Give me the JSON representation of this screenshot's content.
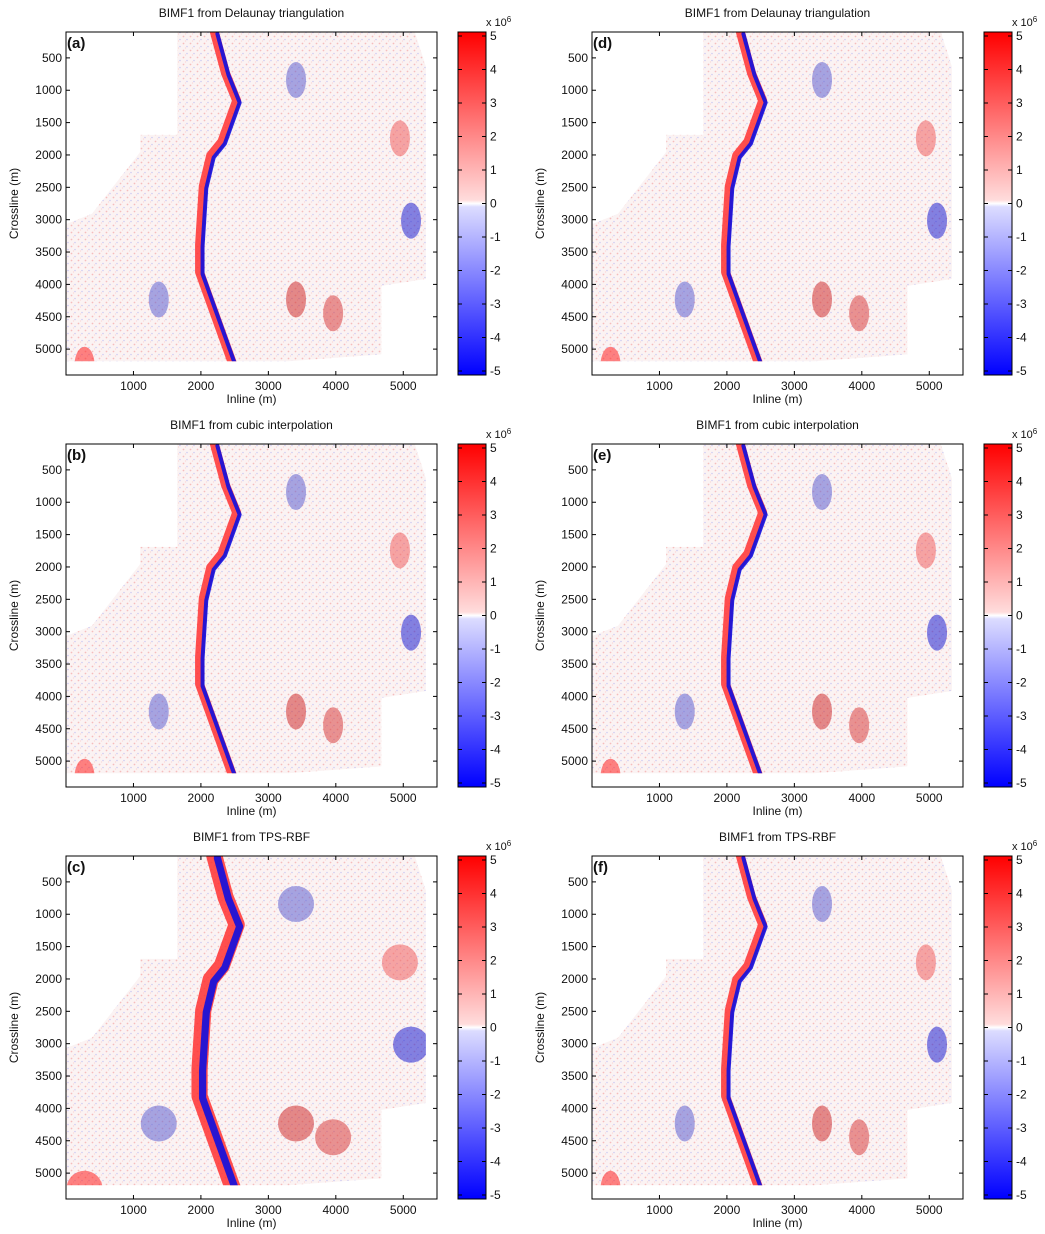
{
  "figure": {
    "colorbar": {
      "ticks": [
        "5",
        "4",
        "3",
        "2",
        "1",
        "0",
        "-1",
        "-2",
        "-3",
        "-4",
        "-5"
      ],
      "multiplier_base": "x 10",
      "multiplier_exp": "6",
      "colors": {
        "max": "#ff0000",
        "mid": "#ffffff",
        "min": "#0000ff"
      }
    },
    "colors": {
      "positive": "#ff0000",
      "negative": "#0000ff",
      "background": "#ffffff"
    }
  },
  "chart_data": [
    {
      "panel": "(a)",
      "type": "heatmap",
      "title": "BIMF1 from Delaunay triangulation",
      "xlabel": "Inline (m)",
      "ylabel": "Crossline (m)",
      "xticks": [
        "1000",
        "2000",
        "3000",
        "4000",
        "5000"
      ],
      "yticks": [
        "500",
        "1000",
        "1500",
        "2000",
        "2500",
        "3000",
        "3500",
        "4000",
        "4500",
        "5000"
      ],
      "xlim": [
        0,
        5500
      ],
      "ylim": [
        5400,
        100
      ],
      "clim": [
        -5,
        5
      ],
      "clim_multiplier": "x 10^6"
    },
    {
      "panel": "(b)",
      "type": "heatmap",
      "title": "BIMF1 from cubic interpolation",
      "xlabel": "Inline (m)",
      "ylabel": "Crossline (m)",
      "xticks": [
        "1000",
        "2000",
        "3000",
        "4000",
        "5000"
      ],
      "yticks": [
        "500",
        "1000",
        "1500",
        "2000",
        "2500",
        "3000",
        "3500",
        "4000",
        "4500",
        "5000"
      ],
      "xlim": [
        0,
        5500
      ],
      "ylim": [
        5400,
        100
      ],
      "clim": [
        -5,
        5
      ],
      "clim_multiplier": "x 10^6"
    },
    {
      "panel": "(c)",
      "type": "heatmap",
      "title": "BIMF1 from TPS-RBF",
      "xlabel": "Inline (m)",
      "ylabel": "Crossline (m)",
      "xticks": [
        "1000",
        "2000",
        "3000",
        "4000",
        "5000"
      ],
      "yticks": [
        "500",
        "1000",
        "1500",
        "2000",
        "2500",
        "3000",
        "3500",
        "4000",
        "4500",
        "5000"
      ],
      "xlim": [
        0,
        5500
      ],
      "ylim": [
        5400,
        100
      ],
      "clim": [
        -5,
        5
      ],
      "clim_multiplier": "x 10^6"
    },
    {
      "panel": "(d)",
      "type": "heatmap",
      "title": "BIMF1 from Delaunay triangulation",
      "xlabel": "Inline (m)",
      "ylabel": "Crossline (m)",
      "xticks": [
        "1000",
        "2000",
        "3000",
        "4000",
        "5000"
      ],
      "yticks": [
        "500",
        "1000",
        "1500",
        "2000",
        "2500",
        "3000",
        "3500",
        "4000",
        "4500",
        "5000"
      ],
      "xlim": [
        0,
        5500
      ],
      "ylim": [
        5400,
        100
      ],
      "clim": [
        -5,
        5
      ],
      "clim_multiplier": "x 10^6"
    },
    {
      "panel": "(e)",
      "type": "heatmap",
      "title": "BIMF1 from cubic interpolation",
      "xlabel": "Inline (m)",
      "ylabel": "Crossline (m)",
      "xticks": [
        "1000",
        "2000",
        "3000",
        "4000",
        "5000"
      ],
      "yticks": [
        "500",
        "1000",
        "1500",
        "2000",
        "2500",
        "3000",
        "3500",
        "4000",
        "4500",
        "5000"
      ],
      "xlim": [
        0,
        5500
      ],
      "ylim": [
        5400,
        100
      ],
      "clim": [
        -5,
        5
      ],
      "clim_multiplier": "x 10^6"
    },
    {
      "panel": "(f)",
      "type": "heatmap",
      "title": "BIMF1 from TPS-RBF",
      "xlabel": "Inline (m)",
      "ylabel": "Crossline (m)",
      "xticks": [
        "1000",
        "2000",
        "3000",
        "4000",
        "5000"
      ],
      "yticks": [
        "500",
        "1000",
        "1500",
        "2000",
        "2500",
        "3000",
        "3500",
        "4000",
        "4500",
        "5000"
      ],
      "xlim": [
        0,
        5500
      ],
      "ylim": [
        5400,
        100
      ],
      "clim": [
        -5,
        5
      ],
      "clim_multiplier": "x 10^6"
    }
  ]
}
